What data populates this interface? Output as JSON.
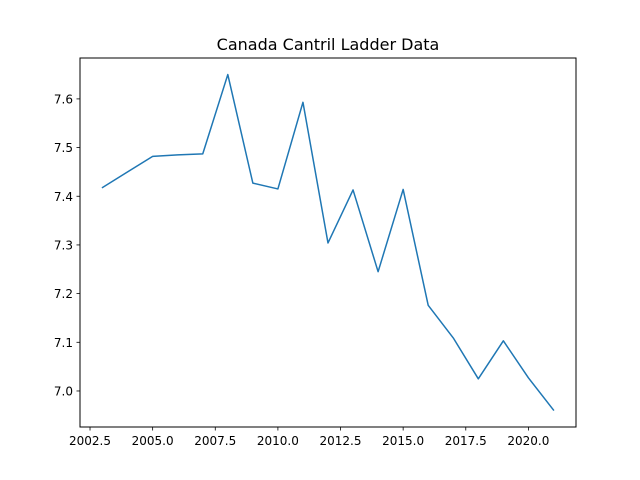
{
  "chart_data": {
    "type": "line",
    "title": "Canada Cantril Ladder Data",
    "xlabel": "",
    "ylabel": "",
    "x": [
      2003,
      2005,
      2006,
      2007,
      2008,
      2009,
      2010,
      2011,
      2012,
      2013,
      2014,
      2015,
      2016,
      2017,
      2018,
      2019,
      2020,
      2021
    ],
    "series": [
      {
        "values": [
          7.418,
          7.482,
          7.485,
          7.487,
          7.65,
          7.427,
          7.415,
          7.593,
          7.304,
          7.413,
          7.245,
          7.414,
          7.176,
          7.109,
          7.025,
          7.103,
          7.027,
          6.961
        ]
      }
    ],
    "xlim": [
      2002.1,
      2021.9
    ],
    "ylim": [
      6.926,
      7.684
    ],
    "xticks": [
      2002.5,
      2005.0,
      2007.5,
      2010.0,
      2012.5,
      2015.0,
      2017.5,
      2020.0
    ],
    "xtick_labels": [
      "2002.5",
      "2005.0",
      "2007.5",
      "2010.0",
      "2012.5",
      "2015.0",
      "2017.5",
      "2020.0"
    ],
    "yticks": [
      7.0,
      7.1,
      7.2,
      7.3,
      7.4,
      7.5,
      7.6
    ],
    "ytick_labels": [
      "7.0",
      "7.1",
      "7.2",
      "7.3",
      "7.4",
      "7.5",
      "7.6"
    ],
    "grid": false,
    "legend": "none",
    "line_color": "#1f77b4"
  }
}
